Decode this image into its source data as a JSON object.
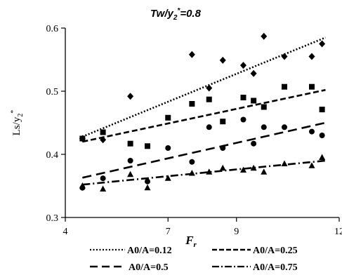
{
  "chart_data": {
    "type": "scatter",
    "title_main": "Tw/y",
    "title_sub": "2",
    "title_sup": "*",
    "title_tail": "=0.8",
    "ylabel_main": "Ls/y",
    "ylabel_sub": "2",
    "ylabel_sup": "*",
    "xlabel_main": "F",
    "xlabel_sub": "r",
    "xlim": [
      4,
      12
    ],
    "ylim": [
      0.3,
      0.6
    ],
    "xticks": [
      "4",
      "7",
      "9",
      "12"
    ],
    "xtick_values": [
      4,
      7,
      9,
      12
    ],
    "yticks": [
      "0.3",
      "0.4",
      "0.5",
      "0.6"
    ],
    "ytick_values": [
      0.3,
      0.4,
      0.5,
      0.6
    ],
    "grid": false,
    "legend_position": "bottom",
    "series": [
      {
        "name": "A0/A=0.12",
        "marker": "diamond",
        "dash": "dotted",
        "x": [
          4.5,
          5.1,
          5.9,
          7.7,
          8.2,
          8.6,
          9.2,
          9.5,
          9.8,
          10.4,
          11.2,
          11.5
        ],
        "y": [
          0.425,
          0.423,
          0.492,
          0.558,
          0.505,
          0.549,
          0.541,
          0.528,
          0.587,
          0.555,
          0.555,
          0.575
        ],
        "fit": [
          [
            4.5,
            0.428
          ],
          [
            11.6,
            0.585
          ]
        ]
      },
      {
        "name": "A0/A=0.25",
        "marker": "square",
        "dash": "dashed",
        "x": [
          4.5,
          5.1,
          5.9,
          6.4,
          7.0,
          7.7,
          8.2,
          8.6,
          9.2,
          9.5,
          9.8,
          10.4,
          11.2,
          11.5
        ],
        "y": [
          0.425,
          0.435,
          0.417,
          0.413,
          0.458,
          0.48,
          0.487,
          0.452,
          0.49,
          0.485,
          0.475,
          0.507,
          0.507,
          0.471
        ],
        "fit": [
          [
            4.5,
            0.42
          ],
          [
            11.6,
            0.502
          ]
        ]
      },
      {
        "name": "A0/A=0.5",
        "marker": "circle",
        "dash": "long-dash",
        "x": [
          4.5,
          5.1,
          5.9,
          6.4,
          7.0,
          7.7,
          8.2,
          8.6,
          9.2,
          9.5,
          9.8,
          10.4,
          11.2,
          11.5
        ],
        "y": [
          0.347,
          0.362,
          0.39,
          0.357,
          0.41,
          0.388,
          0.443,
          0.41,
          0.455,
          0.417,
          0.443,
          0.443,
          0.436,
          0.43
        ],
        "fit": [
          [
            4.5,
            0.363
          ],
          [
            11.6,
            0.45
          ]
        ]
      },
      {
        "name": "A0/A=0.75",
        "marker": "triangle",
        "dash": "dash-dot",
        "x": [
          4.5,
          5.1,
          5.9,
          6.4,
          7.0,
          7.7,
          8.2,
          8.6,
          9.2,
          9.5,
          9.8,
          10.4,
          11.2,
          11.5
        ],
        "y": [
          0.35,
          0.345,
          0.368,
          0.347,
          0.362,
          0.37,
          0.372,
          0.378,
          0.375,
          0.378,
          0.372,
          0.385,
          0.382,
          0.395
        ],
        "fit": [
          [
            4.5,
            0.352
          ],
          [
            11.6,
            0.39
          ]
        ]
      }
    ]
  }
}
